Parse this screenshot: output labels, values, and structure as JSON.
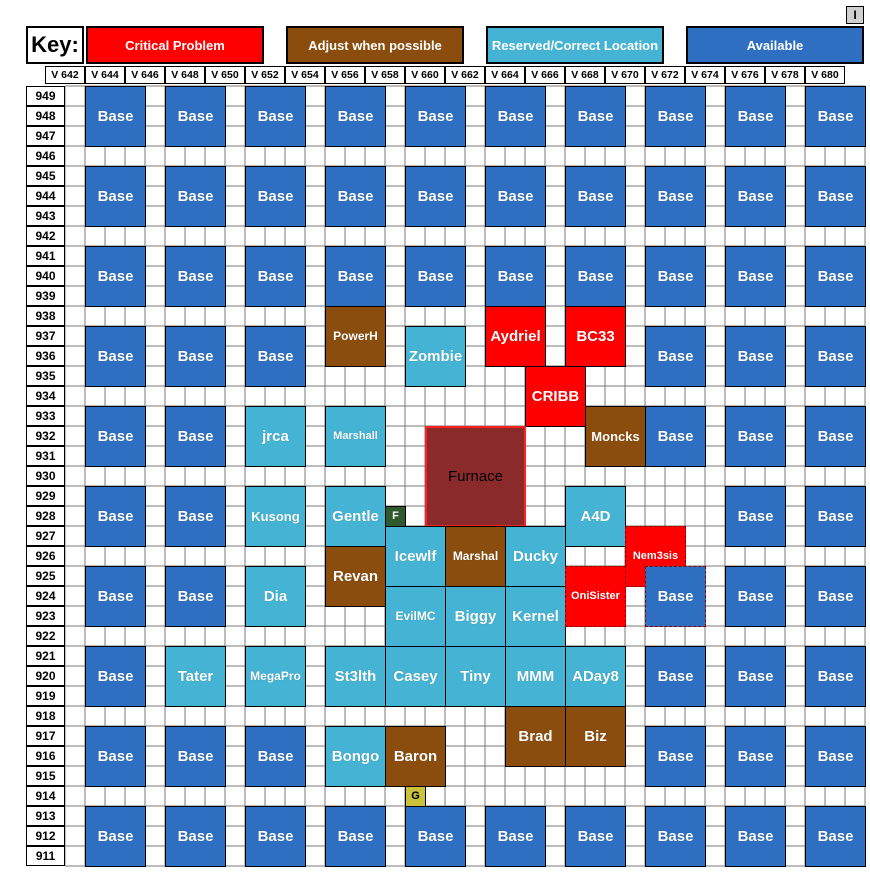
{
  "key": {
    "title": "Key:",
    "corner_label": "I",
    "items": [
      {
        "label": "Critical Problem",
        "color": "#ff0000"
      },
      {
        "label": "Adjust when possible",
        "color": "#8b4d0d"
      },
      {
        "label": "Reserved/Correct Location",
        "color": "#45b4d4"
      },
      {
        "label": "Available",
        "color": "#2f6fc1"
      }
    ]
  },
  "colors": {
    "base": "#2f6fc1",
    "reserved": "#45b4d4",
    "adjust": "#8b4d0d",
    "critical": "#ff0000",
    "furnace": "#8b2a2a",
    "f_marker": "#2e5a2e",
    "g_marker": "#c9c23a",
    "grid_line": "#7a7a7a"
  },
  "columns": [
    "V 642",
    "V 644",
    "V 646",
    "V 648",
    "V 650",
    "V 652",
    "V 654",
    "V 656",
    "V 658",
    "V 660",
    "V 662",
    "V 664",
    "V 666",
    "V 668",
    "V 670",
    "V 672",
    "V 674",
    "V 676",
    "V 678",
    "V 680"
  ],
  "rows": [
    "949",
    "948",
    "947",
    "946",
    "945",
    "944",
    "943",
    "942",
    "941",
    "940",
    "939",
    "938",
    "937",
    "936",
    "935",
    "934",
    "933",
    "932",
    "931",
    "930",
    "929",
    "928",
    "927",
    "926",
    "925",
    "924",
    "923",
    "922",
    "921",
    "920",
    "919",
    "918",
    "917",
    "916",
    "915",
    "914",
    "913",
    "912",
    "911"
  ],
  "blocks": [
    {
      "label": "Base",
      "status": "base",
      "c": 1,
      "r": 0
    },
    {
      "label": "Base",
      "status": "base",
      "c": 5,
      "r": 0
    },
    {
      "label": "Base",
      "status": "base",
      "c": 9,
      "r": 0
    },
    {
      "label": "Base",
      "status": "base",
      "c": 13,
      "r": 0
    },
    {
      "label": "Base",
      "status": "base",
      "c": 17,
      "r": 0
    },
    {
      "label": "Base",
      "status": "base",
      "c": 21,
      "r": 0
    },
    {
      "label": "Base",
      "status": "base",
      "c": 25,
      "r": 0
    },
    {
      "label": "Base",
      "status": "base",
      "c": 29,
      "r": 0
    },
    {
      "label": "Base",
      "status": "base",
      "c": 33,
      "r": 0
    },
    {
      "label": "Base",
      "status": "base",
      "c": 37,
      "r": 0
    },
    {
      "label": "Base",
      "status": "base",
      "c": 1,
      "r": 4
    },
    {
      "label": "Base",
      "status": "base",
      "c": 5,
      "r": 4
    },
    {
      "label": "Base",
      "status": "base",
      "c": 9,
      "r": 4
    },
    {
      "label": "Base",
      "status": "base",
      "c": 13,
      "r": 4
    },
    {
      "label": "Base",
      "status": "base",
      "c": 17,
      "r": 4
    },
    {
      "label": "Base",
      "status": "base",
      "c": 21,
      "r": 4
    },
    {
      "label": "Base",
      "status": "base",
      "c": 25,
      "r": 4
    },
    {
      "label": "Base",
      "status": "base",
      "c": 29,
      "r": 4
    },
    {
      "label": "Base",
      "status": "base",
      "c": 33,
      "r": 4
    },
    {
      "label": "Base",
      "status": "base",
      "c": 37,
      "r": 4
    },
    {
      "label": "Base",
      "status": "base",
      "c": 1,
      "r": 8
    },
    {
      "label": "Base",
      "status": "base",
      "c": 5,
      "r": 8
    },
    {
      "label": "Base",
      "status": "base",
      "c": 9,
      "r": 8
    },
    {
      "label": "Base",
      "status": "base",
      "c": 13,
      "r": 8
    },
    {
      "label": "Base",
      "status": "base",
      "c": 17,
      "r": 8
    },
    {
      "label": "Base",
      "status": "base",
      "c": 21,
      "r": 8
    },
    {
      "label": "Base",
      "status": "base",
      "c": 25,
      "r": 8
    },
    {
      "label": "Base",
      "status": "base",
      "c": 29,
      "r": 8
    },
    {
      "label": "Base",
      "status": "base",
      "c": 33,
      "r": 8
    },
    {
      "label": "Base",
      "status": "base",
      "c": 37,
      "r": 8
    },
    {
      "label": "Base",
      "status": "base",
      "c": 1,
      "r": 12
    },
    {
      "label": "Base",
      "status": "base",
      "c": 5,
      "r": 12
    },
    {
      "label": "Base",
      "status": "base",
      "c": 9,
      "r": 12
    },
    {
      "label": "PowerH",
      "status": "adjust",
      "c": 13,
      "r": 11,
      "fs": 12
    },
    {
      "label": "Zombie",
      "status": "reserved",
      "c": 17,
      "r": 12
    },
    {
      "label": "Aydriel",
      "status": "critical",
      "c": 21,
      "r": 11
    },
    {
      "label": "BC33",
      "status": "critical",
      "c": 25,
      "r": 11
    },
    {
      "label": "Base",
      "status": "base",
      "c": 29,
      "r": 12
    },
    {
      "label": "Base",
      "status": "base",
      "c": 33,
      "r": 12
    },
    {
      "label": "Base",
      "status": "base",
      "c": 37,
      "r": 12
    },
    {
      "label": "CRIBB",
      "status": "critical",
      "c": 23,
      "r": 14
    },
    {
      "label": "Base",
      "status": "base",
      "c": 1,
      "r": 16
    },
    {
      "label": "Base",
      "status": "base",
      "c": 5,
      "r": 16
    },
    {
      "label": "jrca",
      "status": "reserved",
      "c": 9,
      "r": 16
    },
    {
      "label": "Marshall",
      "status": "reserved",
      "c": 13,
      "r": 16,
      "fs": 11
    },
    {
      "label": "Furnace",
      "status": "furnace",
      "c": 18,
      "r": 17,
      "w": 5,
      "h": 5,
      "fs": 15,
      "thin": true
    },
    {
      "label": "Moncks",
      "status": "adjust",
      "c": 26,
      "r": 16,
      "fs": 13
    },
    {
      "label": "Base",
      "status": "base",
      "c": 29,
      "r": 16
    },
    {
      "label": "Base",
      "status": "base",
      "c": 33,
      "r": 16
    },
    {
      "label": "Base",
      "status": "base",
      "c": 37,
      "r": 16
    },
    {
      "label": "Base",
      "status": "base",
      "c": 1,
      "r": 20
    },
    {
      "label": "Base",
      "status": "base",
      "c": 5,
      "r": 20
    },
    {
      "label": "Kusong",
      "status": "reserved",
      "c": 9,
      "r": 20,
      "fs": 13
    },
    {
      "label": "Gentle",
      "status": "reserved",
      "c": 13,
      "r": 20
    },
    {
      "label": "F",
      "status": "f_marker",
      "c": 16,
      "r": 21,
      "w": 1,
      "h": 1,
      "fs": 11
    },
    {
      "label": "A4D",
      "status": "reserved",
      "c": 25,
      "r": 20
    },
    {
      "label": "Base",
      "status": "base",
      "c": 33,
      "r": 20
    },
    {
      "label": "Base",
      "status": "base",
      "c": 37,
      "r": 20
    },
    {
      "label": "Icewlf",
      "status": "reserved",
      "c": 16,
      "r": 22
    },
    {
      "label": "Marshal",
      "status": "adjust",
      "c": 19,
      "r": 22,
      "fs": 12
    },
    {
      "label": "Ducky",
      "status": "reserved",
      "c": 22,
      "r": 22
    },
    {
      "label": "Nem3sis",
      "status": "critical",
      "c": 28,
      "r": 22,
      "dashed": true,
      "fs": 11
    },
    {
      "label": "Revan",
      "status": "adjust",
      "c": 13,
      "r": 23
    },
    {
      "label": "Base",
      "status": "base",
      "c": 1,
      "r": 24
    },
    {
      "label": "Base",
      "status": "base",
      "c": 5,
      "r": 24
    },
    {
      "label": "Dia",
      "status": "reserved",
      "c": 9,
      "r": 24
    },
    {
      "label": "EvilMC",
      "status": "reserved",
      "c": 16,
      "r": 25,
      "fs": 12
    },
    {
      "label": "Biggy",
      "status": "reserved",
      "c": 19,
      "r": 25
    },
    {
      "label": "Kernel",
      "status": "reserved",
      "c": 22,
      "r": 25
    },
    {
      "label": "OniSister",
      "status": "critical",
      "c": 25,
      "r": 24,
      "dashed": true,
      "fs": 11
    },
    {
      "label": "Base",
      "status": "base",
      "c": 29,
      "r": 24,
      "dashed": true
    },
    {
      "label": "Base",
      "status": "base",
      "c": 33,
      "r": 24
    },
    {
      "label": "Base",
      "status": "base",
      "c": 37,
      "r": 24
    },
    {
      "label": "Base",
      "status": "base",
      "c": 1,
      "r": 28
    },
    {
      "label": "Tater",
      "status": "reserved",
      "c": 5,
      "r": 28
    },
    {
      "label": "MegaPro",
      "status": "reserved",
      "c": 9,
      "r": 28,
      "fs": 12
    },
    {
      "label": "St3lth",
      "status": "reserved",
      "c": 13,
      "r": 28
    },
    {
      "label": "Casey",
      "status": "reserved",
      "c": 16,
      "r": 28
    },
    {
      "label": "Tiny",
      "status": "reserved",
      "c": 19,
      "r": 28
    },
    {
      "label": "MMM",
      "status": "reserved",
      "c": 22,
      "r": 28
    },
    {
      "label": "ADay8",
      "status": "reserved",
      "c": 25,
      "r": 28
    },
    {
      "label": "Base",
      "status": "base",
      "c": 29,
      "r": 28
    },
    {
      "label": "Base",
      "status": "base",
      "c": 33,
      "r": 28
    },
    {
      "label": "Base",
      "status": "base",
      "c": 37,
      "r": 28
    },
    {
      "label": "Brad",
      "status": "adjust",
      "c": 22,
      "r": 31
    },
    {
      "label": "Biz",
      "status": "adjust",
      "c": 25,
      "r": 31
    },
    {
      "label": "Base",
      "status": "base",
      "c": 1,
      "r": 32
    },
    {
      "label": "Base",
      "status": "base",
      "c": 5,
      "r": 32
    },
    {
      "label": "Base",
      "status": "base",
      "c": 9,
      "r": 32
    },
    {
      "label": "Bongo",
      "status": "reserved",
      "c": 13,
      "r": 32
    },
    {
      "label": "Baron",
      "status": "adjust",
      "c": 16,
      "r": 32
    },
    {
      "label": "Base",
      "status": "base",
      "c": 29,
      "r": 32
    },
    {
      "label": "Base",
      "status": "base",
      "c": 33,
      "r": 32
    },
    {
      "label": "Base",
      "status": "base",
      "c": 37,
      "r": 32
    },
    {
      "label": "G",
      "status": "g_marker",
      "c": 17,
      "r": 35,
      "w": 1,
      "h": 1,
      "fs": 11
    },
    {
      "label": "Base",
      "status": "base",
      "c": 1,
      "r": 36
    },
    {
      "label": "Base",
      "status": "base",
      "c": 5,
      "r": 36
    },
    {
      "label": "Base",
      "status": "base",
      "c": 9,
      "r": 36
    },
    {
      "label": "Base",
      "status": "base",
      "c": 13,
      "r": 36
    },
    {
      "label": "Base",
      "status": "base",
      "c": 17,
      "r": 36
    },
    {
      "label": "Base",
      "status": "base",
      "c": 21,
      "r": 36
    },
    {
      "label": "Base",
      "status": "base",
      "c": 25,
      "r": 36
    },
    {
      "label": "Base",
      "status": "base",
      "c": 29,
      "r": 36
    },
    {
      "label": "Base",
      "status": "base",
      "c": 33,
      "r": 36
    },
    {
      "label": "Base",
      "status": "base",
      "c": 37,
      "r": 36
    }
  ]
}
